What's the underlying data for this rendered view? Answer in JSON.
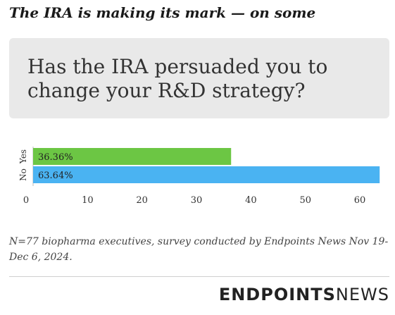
{
  "headline": "The IRA is making its mark — on some",
  "question": "Has the IRA persuaded you to change your R&D strategy?",
  "note": "N=77 biopharma executives, survey conducted by Endpoints News Nov 19-Dec 6, 2024.",
  "logo": {
    "bold": "ENDPOINTS",
    "light": "NEWS"
  },
  "colors": {
    "yes": "#6cc644",
    "no": "#4ab3f2",
    "box": "#e9e9e9"
  },
  "chart_data": {
    "type": "bar",
    "orientation": "horizontal",
    "categories": [
      "Yes",
      "No"
    ],
    "values": [
      36.36,
      63.64
    ],
    "value_labels": [
      "36.36%",
      "63.64%"
    ],
    "colors": [
      "#6cc644",
      "#4ab3f2"
    ],
    "xlim": [
      0,
      64
    ],
    "xticks": [
      0,
      10,
      20,
      30,
      40,
      50,
      60
    ],
    "title": "",
    "xlabel": "",
    "ylabel": "",
    "grid": false
  }
}
